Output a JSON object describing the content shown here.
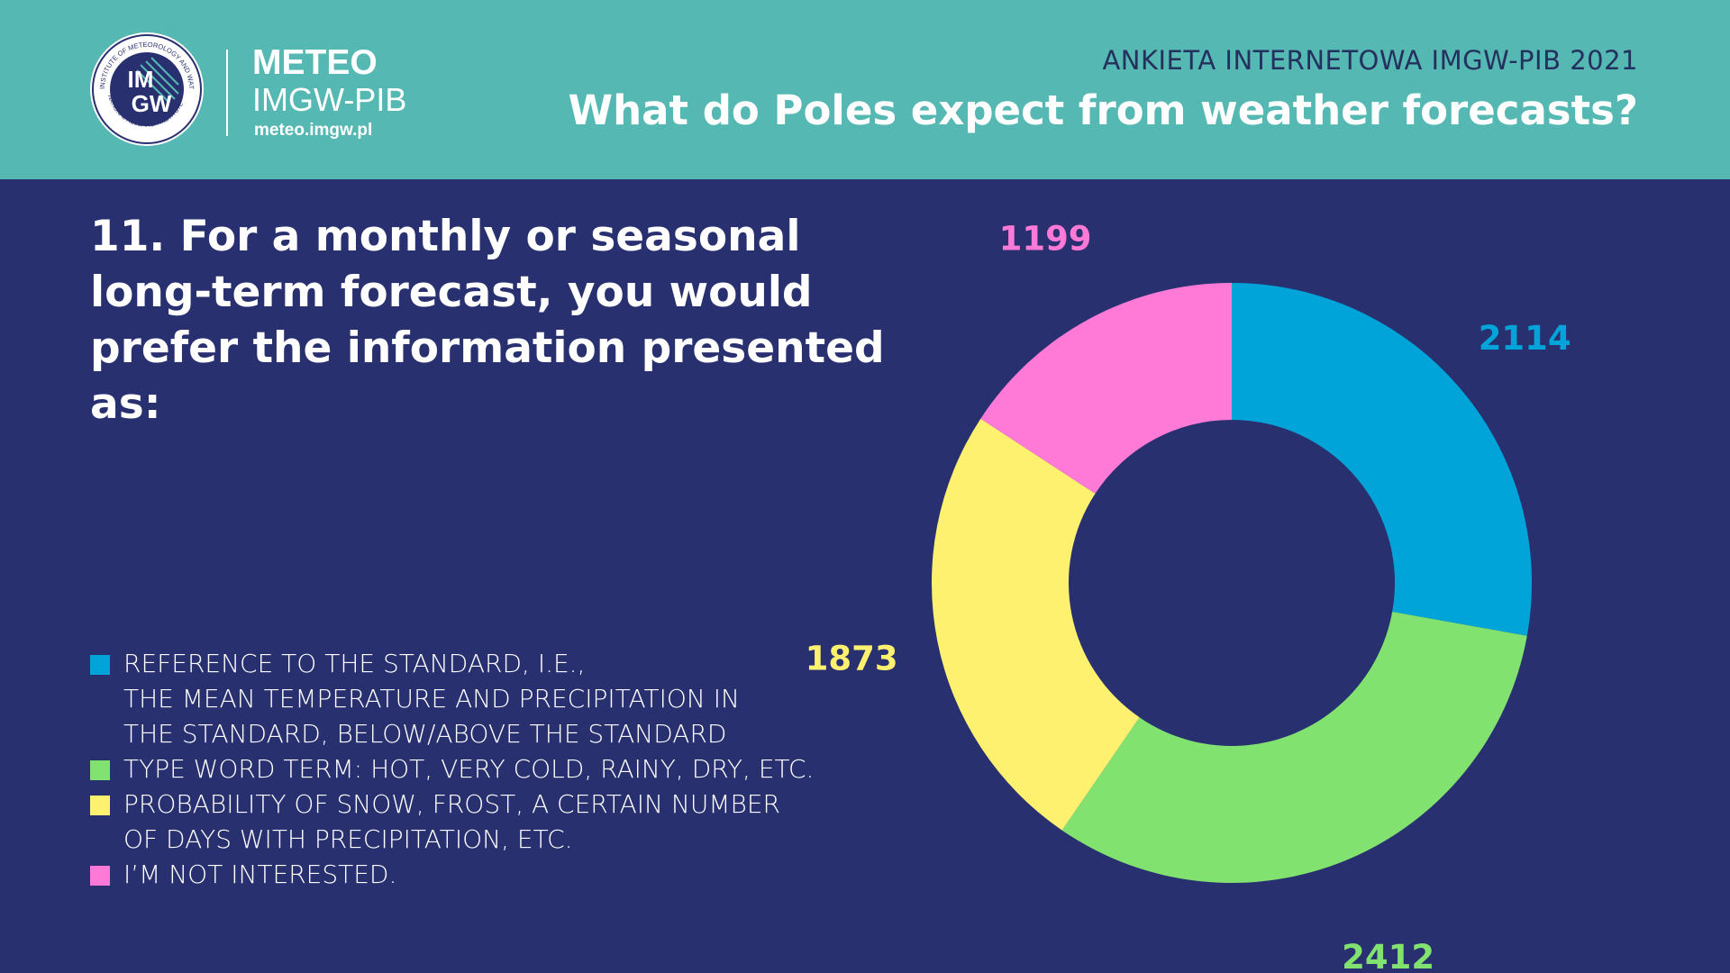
{
  "header": {
    "brand": "METEO",
    "brand_sub": "IMGW-PIB",
    "url": "meteo.imgw.pl",
    "seal_top_text": "INSTITUTE OF METEOROLOGY AND WATER MANAGEMENT",
    "seal_bottom_text": "NATIONAL RESEARCH INSTITUTE",
    "seal_line1": "IM",
    "seal_line2": "GW",
    "survey_name": "ANKIETA INTERNETOWA IMGW-PIB 2021",
    "title": "What do Poles expect from weather forecasts?"
  },
  "question": {
    "lines": [
      "11. For a monthly or seasonal",
      "long-term forecast, you would",
      "prefer  the information presented as:"
    ]
  },
  "colors": {
    "header_bg": "#55b8b2",
    "body_bg": "#283070",
    "blue": "#00a4d8",
    "green": "#82e270",
    "yellow": "#fff170",
    "pink": "#ff7ad6"
  },
  "legend": [
    {
      "lines": [
        "REFERENCE TO THE STANDARD, I.E.,",
        "THE MEAN TEMPERATURE AND PRECIPITATION IN",
        "THE STANDARD, BELOW/ABOVE THE STANDARD"
      ],
      "color": "#00a4d8"
    },
    {
      "lines": [
        "TYPE WORD TERM: HOT, VERY COLD, RAINY, DRY, ETC."
      ],
      "color": "#82e270"
    },
    {
      "lines": [
        "PROBABILITY OF SNOW, FROST, A CERTAIN NUMBER",
        "OF DAYS WITH PRECIPITATION, ETC."
      ],
      "color": "#fff170"
    },
    {
      "lines": [
        "I’M NOT INTERESTED."
      ],
      "color": "#ff7ad6"
    }
  ],
  "chart_data": {
    "type": "pie",
    "variant": "donut",
    "categories": [
      "REFERENCE TO THE STANDARD, I.E., THE MEAN TEMPERATURE AND PRECIPITATION IN THE STANDARD, BELOW/ABOVE THE STANDARD",
      "TYPE WORD TERM: HOT, VERY COLD, RAINY, DRY, ETC.",
      "PROBABILITY OF SNOW, FROST, A CERTAIN NUMBER OF DAYS WITH PRECIPITATION, ETC.",
      "I’M NOT INTERESTED."
    ],
    "values": [
      2114,
      2412,
      1873,
      1199
    ],
    "value_labels": [
      "2114",
      "2412",
      "1873",
      "1199"
    ],
    "colors": [
      "#00a4d8",
      "#82e270",
      "#fff170",
      "#ff7ad6"
    ],
    "legend_position": "bottom-left",
    "start_angle": "top",
    "direction": "clockwise"
  }
}
